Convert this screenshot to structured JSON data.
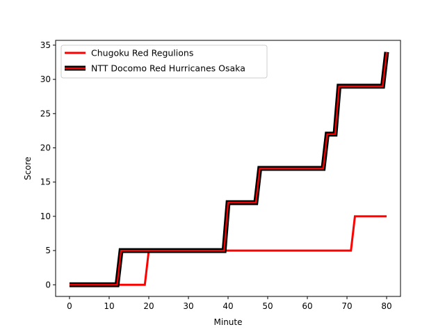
{
  "chart_data": {
    "type": "line",
    "title": "",
    "xlabel": "Minute",
    "ylabel": "Score",
    "xlim": [
      -3.5,
      83.5
    ],
    "ylim": [
      -1.7,
      35.7
    ],
    "xticks": [
      0,
      10,
      20,
      30,
      40,
      50,
      60,
      70,
      80
    ],
    "yticks": [
      0,
      5,
      10,
      15,
      20,
      25,
      30,
      35
    ],
    "grid": false,
    "legend_position": "top-left",
    "series": [
      {
        "name": "Chugoku Red Regulions",
        "color": "#ff0000",
        "outline": "",
        "x": [
          0,
          19,
          20,
          71,
          72,
          80
        ],
        "y": [
          0,
          0,
          5,
          5,
          10,
          10
        ]
      },
      {
        "name": "NTT Docomo Red Hurricanes Osaka",
        "color": "#ff0000",
        "outline": "#000000",
        "x": [
          0,
          12,
          13,
          39,
          40,
          47,
          48,
          64,
          65,
          67,
          68,
          79,
          80
        ],
        "y": [
          0,
          0,
          5,
          5,
          12,
          12,
          17,
          17,
          22,
          22,
          29,
          29,
          34
        ]
      }
    ]
  }
}
